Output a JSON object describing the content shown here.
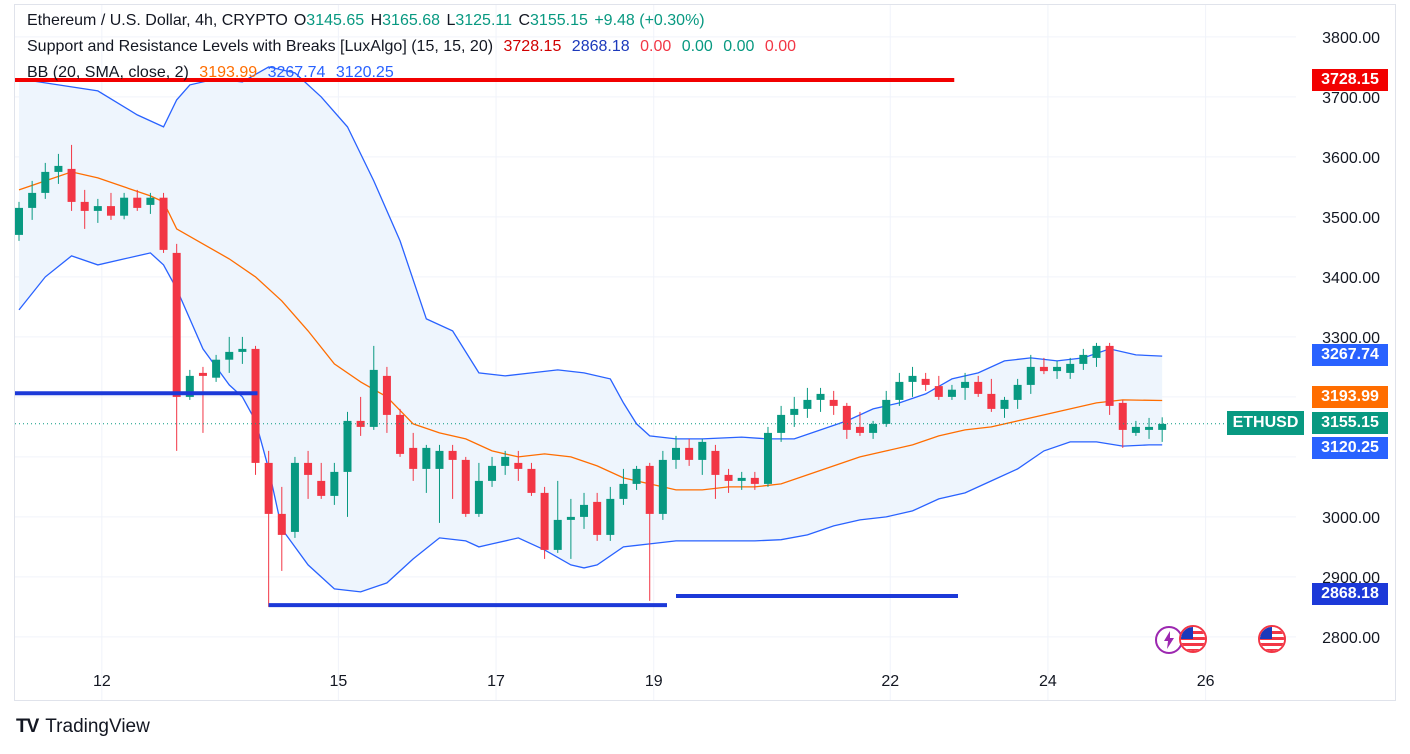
{
  "legend": {
    "symbol": "Ethereum / U.S. Dollar, 4h, CRYPTO",
    "o_label": "O",
    "o_value": "3145.65",
    "h_label": "H",
    "h_value": "3165.68",
    "l_label": "L",
    "l_value": "3125.11",
    "c_label": "C",
    "c_value": "3155.15",
    "change": "+9.48 (+0.30%)",
    "indicator1_name": "Support and Resistance Levels with Breaks [LuxAlgo] (15, 15, 20)",
    "indicator1_values": [
      "3728.15",
      "2868.18",
      "0.00",
      "0.00",
      "0.00",
      "0.00"
    ],
    "indicator2_name": "BB (20, SMA, close, 2)",
    "indicator2_values": [
      "3193.99",
      "3267.74",
      "3120.25"
    ]
  },
  "price_labels": {
    "resistance": "3728.15",
    "bb_upper": "3267.74",
    "bb_basis": "3193.99",
    "close": "3155.15",
    "bb_lower": "3120.25",
    "support": "2868.18",
    "ticker": "ETHUSD"
  },
  "brand": {
    "name": "TradingView",
    "logo": "TV"
  },
  "colors": {
    "up": "#089981",
    "down": "#f23645",
    "bb_line": "#2962ff",
    "bb_fill": "#eef5fd",
    "basis": "#ff6d00",
    "resistance": "#f20000",
    "support": "#1c39d8"
  },
  "chart_data": {
    "type": "candlestick",
    "title": "Ethereum / U.S. Dollar, 4h, CRYPTO",
    "ylim": [
      2770,
      3830
    ],
    "y_ticks": [
      2800,
      2900,
      3000,
      3100,
      3200,
      3300,
      3400,
      3500,
      3600,
      3700,
      3800
    ],
    "y_tick_labels": [
      "2800.00",
      "2900.00",
      "3000.00",
      "",
      "",
      "3300.00",
      "3400.00",
      "3500.00",
      "3600.00",
      "3700.00",
      "3800.00"
    ],
    "x_ticks": [
      {
        "label": "12",
        "index": 6
      },
      {
        "label": "15",
        "index": 24
      },
      {
        "label": "17",
        "index": 36
      },
      {
        "label": "19",
        "index": 48
      },
      {
        "label": "22",
        "index": 66
      },
      {
        "label": "24",
        "index": 78
      },
      {
        "label": "26",
        "index": 90
      }
    ],
    "candles": [
      {
        "o": 3470,
        "h": 3525,
        "l": 3460,
        "c": 3515
      },
      {
        "o": 3515,
        "h": 3560,
        "l": 3495,
        "c": 3540
      },
      {
        "o": 3540,
        "h": 3590,
        "l": 3530,
        "c": 3575
      },
      {
        "o": 3575,
        "h": 3605,
        "l": 3555,
        "c": 3585
      },
      {
        "o": 3580,
        "h": 3620,
        "l": 3510,
        "c": 3525
      },
      {
        "o": 3525,
        "h": 3545,
        "l": 3480,
        "c": 3510
      },
      {
        "o": 3510,
        "h": 3530,
        "l": 3490,
        "c": 3518
      },
      {
        "o": 3518,
        "h": 3540,
        "l": 3495,
        "c": 3502
      },
      {
        "o": 3502,
        "h": 3540,
        "l": 3496,
        "c": 3532
      },
      {
        "o": 3532,
        "h": 3545,
        "l": 3510,
        "c": 3515
      },
      {
        "o": 3520,
        "h": 3540,
        "l": 3505,
        "c": 3532
      },
      {
        "o": 3532,
        "h": 3540,
        "l": 3440,
        "c": 3445
      },
      {
        "o": 3440,
        "h": 3455,
        "l": 3110,
        "c": 3200
      },
      {
        "o": 3200,
        "h": 3245,
        "l": 3195,
        "c": 3235
      },
      {
        "o": 3240,
        "h": 3250,
        "l": 3140,
        "c": 3235
      },
      {
        "o": 3232,
        "h": 3270,
        "l": 3225,
        "c": 3262
      },
      {
        "o": 3262,
        "h": 3300,
        "l": 3240,
        "c": 3275
      },
      {
        "o": 3275,
        "h": 3300,
        "l": 3255,
        "c": 3280
      },
      {
        "o": 3280,
        "h": 3285,
        "l": 3070,
        "c": 3090
      },
      {
        "o": 3090,
        "h": 3110,
        "l": 2850,
        "c": 3005
      },
      {
        "o": 3005,
        "h": 3050,
        "l": 2910,
        "c": 2970
      },
      {
        "o": 2975,
        "h": 3100,
        "l": 2965,
        "c": 3090
      },
      {
        "o": 3090,
        "h": 3110,
        "l": 3030,
        "c": 3070
      },
      {
        "o": 3060,
        "h": 3090,
        "l": 3030,
        "c": 3035
      },
      {
        "o": 3035,
        "h": 3090,
        "l": 3020,
        "c": 3075
      },
      {
        "o": 3075,
        "h": 3175,
        "l": 3000,
        "c": 3160
      },
      {
        "o": 3160,
        "h": 3200,
        "l": 3135,
        "c": 3150
      },
      {
        "o": 3150,
        "h": 3285,
        "l": 3145,
        "c": 3245
      },
      {
        "o": 3235,
        "h": 3250,
        "l": 3140,
        "c": 3170
      },
      {
        "o": 3170,
        "h": 3180,
        "l": 3100,
        "c": 3105
      },
      {
        "o": 3115,
        "h": 3140,
        "l": 3060,
        "c": 3080
      },
      {
        "o": 3080,
        "h": 3120,
        "l": 3040,
        "c": 3115
      },
      {
        "o": 3080,
        "h": 3120,
        "l": 2990,
        "c": 3110
      },
      {
        "o": 3110,
        "h": 3120,
        "l": 3030,
        "c": 3095
      },
      {
        "o": 3095,
        "h": 3100,
        "l": 3000,
        "c": 3005
      },
      {
        "o": 3005,
        "h": 3090,
        "l": 3000,
        "c": 3060
      },
      {
        "o": 3060,
        "h": 3100,
        "l": 3050,
        "c": 3085
      },
      {
        "o": 3085,
        "h": 3110,
        "l": 3070,
        "c": 3100
      },
      {
        "o": 3090,
        "h": 3110,
        "l": 3060,
        "c": 3080
      },
      {
        "o": 3080,
        "h": 3090,
        "l": 3035,
        "c": 3040
      },
      {
        "o": 3040,
        "h": 3050,
        "l": 2930,
        "c": 2945
      },
      {
        "o": 2945,
        "h": 3060,
        "l": 2940,
        "c": 2995
      },
      {
        "o": 2995,
        "h": 3030,
        "l": 2930,
        "c": 3000
      },
      {
        "o": 3000,
        "h": 3040,
        "l": 2980,
        "c": 3020
      },
      {
        "o": 3025,
        "h": 3040,
        "l": 2960,
        "c": 2970
      },
      {
        "o": 2970,
        "h": 3050,
        "l": 2960,
        "c": 3030
      },
      {
        "o": 3030,
        "h": 3080,
        "l": 3020,
        "c": 3055
      },
      {
        "o": 3055,
        "h": 3085,
        "l": 3045,
        "c": 3080
      },
      {
        "o": 3085,
        "h": 3090,
        "l": 2860,
        "c": 3005
      },
      {
        "o": 3005,
        "h": 3110,
        "l": 2995,
        "c": 3095
      },
      {
        "o": 3095,
        "h": 3135,
        "l": 3080,
        "c": 3115
      },
      {
        "o": 3115,
        "h": 3130,
        "l": 3085,
        "c": 3095
      },
      {
        "o": 3095,
        "h": 3130,
        "l": 3070,
        "c": 3125
      },
      {
        "o": 3110,
        "h": 3120,
        "l": 3030,
        "c": 3070
      },
      {
        "o": 3070,
        "h": 3080,
        "l": 3040,
        "c": 3060
      },
      {
        "o": 3060,
        "h": 3075,
        "l": 3045,
        "c": 3065
      },
      {
        "o": 3065,
        "h": 3075,
        "l": 3045,
        "c": 3055
      },
      {
        "o": 3055,
        "h": 3150,
        "l": 3050,
        "c": 3140
      },
      {
        "o": 3140,
        "h": 3185,
        "l": 3125,
        "c": 3170
      },
      {
        "o": 3170,
        "h": 3200,
        "l": 3150,
        "c": 3180
      },
      {
        "o": 3180,
        "h": 3215,
        "l": 3165,
        "c": 3195
      },
      {
        "o": 3195,
        "h": 3215,
        "l": 3175,
        "c": 3205
      },
      {
        "o": 3195,
        "h": 3210,
        "l": 3170,
        "c": 3185
      },
      {
        "o": 3185,
        "h": 3190,
        "l": 3130,
        "c": 3145
      },
      {
        "o": 3150,
        "h": 3175,
        "l": 3135,
        "c": 3140
      },
      {
        "o": 3140,
        "h": 3160,
        "l": 3130,
        "c": 3155
      },
      {
        "o": 3155,
        "h": 3210,
        "l": 3150,
        "c": 3195
      },
      {
        "o": 3195,
        "h": 3240,
        "l": 3185,
        "c": 3225
      },
      {
        "o": 3225,
        "h": 3250,
        "l": 3200,
        "c": 3235
      },
      {
        "o": 3230,
        "h": 3240,
        "l": 3210,
        "c": 3220
      },
      {
        "o": 3218,
        "h": 3235,
        "l": 3195,
        "c": 3200
      },
      {
        "o": 3200,
        "h": 3220,
        "l": 3195,
        "c": 3212
      },
      {
        "o": 3215,
        "h": 3240,
        "l": 3195,
        "c": 3225
      },
      {
        "o": 3225,
        "h": 3235,
        "l": 3200,
        "c": 3205
      },
      {
        "o": 3205,
        "h": 3230,
        "l": 3175,
        "c": 3180
      },
      {
        "o": 3180,
        "h": 3200,
        "l": 3165,
        "c": 3195
      },
      {
        "o": 3195,
        "h": 3230,
        "l": 3180,
        "c": 3220
      },
      {
        "o": 3220,
        "h": 3270,
        "l": 3205,
        "c": 3250
      },
      {
        "o": 3250,
        "h": 3265,
        "l": 3238,
        "c": 3243
      },
      {
        "o": 3243,
        "h": 3260,
        "l": 3230,
        "c": 3250
      },
      {
        "o": 3240,
        "h": 3265,
        "l": 3230,
        "c": 3255
      },
      {
        "o": 3255,
        "h": 3280,
        "l": 3245,
        "c": 3270
      },
      {
        "o": 3265,
        "h": 3290,
        "l": 3250,
        "c": 3285
      },
      {
        "o": 3285,
        "h": 3290,
        "l": 3170,
        "c": 3185
      },
      {
        "o": 3190,
        "h": 3195,
        "l": 3115,
        "c": 3145
      },
      {
        "o": 3140,
        "h": 3160,
        "l": 3135,
        "c": 3150
      },
      {
        "o": 3145,
        "h": 3165,
        "l": 3130,
        "c": 3150
      },
      {
        "o": 3145,
        "h": 3166,
        "l": 3125,
        "c": 3155
      }
    ],
    "bb_upper": [
      [
        0,
        3730
      ],
      [
        3,
        3720
      ],
      [
        6,
        3710
      ],
      [
        9,
        3670
      ],
      [
        11,
        3650
      ],
      [
        12,
        3695
      ],
      [
        13,
        3720
      ],
      [
        15,
        3730
      ],
      [
        17,
        3725
      ],
      [
        19,
        3750
      ],
      [
        21,
        3740
      ],
      [
        23,
        3700
      ],
      [
        25,
        3650
      ],
      [
        27,
        3560
      ],
      [
        29,
        3460
      ],
      [
        31,
        3330
      ],
      [
        33,
        3310
      ],
      [
        35,
        3240
      ],
      [
        37,
        3235
      ],
      [
        39,
        3240
      ],
      [
        41,
        3245
      ],
      [
        43,
        3240
      ],
      [
        45,
        3230
      ],
      [
        46,
        3190
      ],
      [
        47,
        3155
      ],
      [
        48,
        3135
      ],
      [
        50,
        3130
      ],
      [
        52,
        3130
      ],
      [
        55,
        3133
      ],
      [
        57,
        3130
      ],
      [
        59,
        3130
      ],
      [
        61,
        3145
      ],
      [
        63,
        3160
      ],
      [
        65,
        3180
      ],
      [
        67,
        3190
      ],
      [
        69,
        3205
      ],
      [
        71,
        3230
      ],
      [
        73,
        3240
      ],
      [
        75,
        3260
      ],
      [
        77,
        3265
      ],
      [
        79,
        3260
      ],
      [
        81,
        3265
      ],
      [
        83,
        3280
      ],
      [
        85,
        3270
      ],
      [
        87,
        3268
      ]
    ],
    "bb_basis": [
      [
        0,
        3545
      ],
      [
        2,
        3560
      ],
      [
        4,
        3575
      ],
      [
        6,
        3565
      ],
      [
        8,
        3550
      ],
      [
        10,
        3535
      ],
      [
        11,
        3525
      ],
      [
        12,
        3480
      ],
      [
        14,
        3455
      ],
      [
        16,
        3430
      ],
      [
        18,
        3400
      ],
      [
        20,
        3360
      ],
      [
        22,
        3310
      ],
      [
        24,
        3255
      ],
      [
        26,
        3225
      ],
      [
        28,
        3200
      ],
      [
        30,
        3155
      ],
      [
        32,
        3140
      ],
      [
        34,
        3130
      ],
      [
        36,
        3110
      ],
      [
        38,
        3100
      ],
      [
        40,
        3105
      ],
      [
        42,
        3100
      ],
      [
        44,
        3085
      ],
      [
        46,
        3065
      ],
      [
        48,
        3055
      ],
      [
        50,
        3045
      ],
      [
        52,
        3045
      ],
      [
        54,
        3050
      ],
      [
        56,
        3050
      ],
      [
        58,
        3055
      ],
      [
        60,
        3070
      ],
      [
        62,
        3085
      ],
      [
        64,
        3100
      ],
      [
        66,
        3110
      ],
      [
        68,
        3120
      ],
      [
        70,
        3135
      ],
      [
        72,
        3145
      ],
      [
        74,
        3150
      ],
      [
        76,
        3160
      ],
      [
        78,
        3170
      ],
      [
        80,
        3180
      ],
      [
        82,
        3190
      ],
      [
        84,
        3195
      ],
      [
        87,
        3194
      ]
    ],
    "bb_lower": [
      [
        0,
        3345
      ],
      [
        2,
        3400
      ],
      [
        4,
        3435
      ],
      [
        6,
        3420
      ],
      [
        8,
        3430
      ],
      [
        10,
        3440
      ],
      [
        11,
        3420
      ],
      [
        12,
        3380
      ],
      [
        14,
        3280
      ],
      [
        16,
        3220
      ],
      [
        17,
        3200
      ],
      [
        18,
        3160
      ],
      [
        19,
        3080
      ],
      [
        20,
        2980
      ],
      [
        22,
        2920
      ],
      [
        24,
        2880
      ],
      [
        26,
        2875
      ],
      [
        28,
        2890
      ],
      [
        30,
        2930
      ],
      [
        32,
        2965
      ],
      [
        34,
        2960
      ],
      [
        35,
        2950
      ],
      [
        36,
        2955
      ],
      [
        38,
        2965
      ],
      [
        40,
        2945
      ],
      [
        42,
        2920
      ],
      [
        43,
        2915
      ],
      [
        44,
        2920
      ],
      [
        46,
        2950
      ],
      [
        48,
        2955
      ],
      [
        50,
        2960
      ],
      [
        52,
        2960
      ],
      [
        54,
        2960
      ],
      [
        56,
        2960
      ],
      [
        58,
        2962
      ],
      [
        60,
        2970
      ],
      [
        62,
        2985
      ],
      [
        64,
        2995
      ],
      [
        66,
        3000
      ],
      [
        68,
        3010
      ],
      [
        70,
        3030
      ],
      [
        72,
        3040
      ],
      [
        74,
        3060
      ],
      [
        76,
        3080
      ],
      [
        78,
        3110
      ],
      [
        80,
        3125
      ],
      [
        82,
        3125
      ],
      [
        84,
        3118
      ],
      [
        86,
        3120
      ],
      [
        87,
        3120
      ]
    ],
    "resistance_level": {
      "value": 3728.15,
      "from": 0,
      "to": 59
    },
    "support_levels": [
      {
        "value": 3206,
        "from": 0,
        "to": 18
      },
      {
        "value": 2853,
        "from": 19,
        "to": 49
      },
      {
        "value": 2868.18,
        "from": 50,
        "to": 70
      }
    ],
    "last_close": 3155.15
  }
}
